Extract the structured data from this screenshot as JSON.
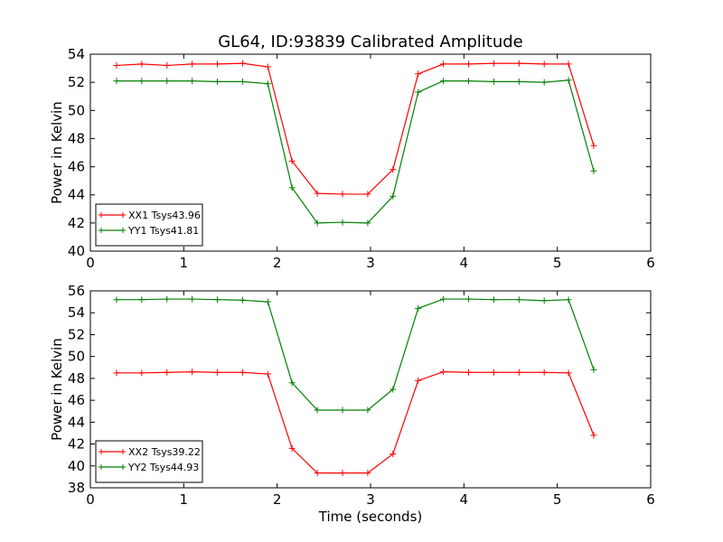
{
  "figure": {
    "title": "GL64, ID:93839 Calibrated Amplitude"
  },
  "chart_data": [
    {
      "type": "line",
      "title": "GL64, ID:93839 Calibrated Amplitude",
      "xlabel": "",
      "ylabel": "Power in Kelvin",
      "xlim": [
        0,
        6
      ],
      "ylim": [
        40,
        54
      ],
      "xticks": [
        0,
        1,
        2,
        3,
        4,
        5,
        6
      ],
      "yticks": [
        40,
        42,
        44,
        46,
        48,
        50,
        52,
        54
      ],
      "grid": false,
      "legend_position": "lower-left",
      "x": [
        0.28,
        0.55,
        0.82,
        1.09,
        1.36,
        1.63,
        1.9,
        2.16,
        2.43,
        2.7,
        2.97,
        3.24,
        3.51,
        3.78,
        4.05,
        4.32,
        4.59,
        4.86,
        5.12,
        5.39
      ],
      "series": [
        {
          "name": "XX1 Tsys43.96",
          "color": "#ff0000",
          "values": [
            53.2,
            53.3,
            53.2,
            53.3,
            53.3,
            53.35,
            53.1,
            46.4,
            44.1,
            44.05,
            44.05,
            45.8,
            52.6,
            53.3,
            53.3,
            53.35,
            53.35,
            53.3,
            53.3,
            47.5
          ]
        },
        {
          "name": "YY1 Tsys41.81",
          "color": "#008000",
          "values": [
            52.1,
            52.1,
            52.1,
            52.1,
            52.05,
            52.05,
            51.9,
            44.5,
            42.0,
            42.05,
            42.0,
            43.9,
            51.3,
            52.1,
            52.1,
            52.05,
            52.05,
            52.0,
            52.15,
            45.7
          ]
        }
      ]
    },
    {
      "type": "line",
      "title": "",
      "xlabel": "Time (seconds)",
      "ylabel": "Power in Kelvin",
      "xlim": [
        0,
        6
      ],
      "ylim": [
        38,
        56
      ],
      "xticks": [
        0,
        1,
        2,
        3,
        4,
        5,
        6
      ],
      "yticks": [
        38,
        40,
        42,
        44,
        46,
        48,
        50,
        52,
        54,
        56
      ],
      "grid": false,
      "legend_position": "lower-left",
      "x": [
        0.28,
        0.55,
        0.82,
        1.09,
        1.36,
        1.63,
        1.9,
        2.16,
        2.43,
        2.7,
        2.97,
        3.24,
        3.51,
        3.78,
        4.05,
        4.32,
        4.59,
        4.86,
        5.12,
        5.39
      ],
      "series": [
        {
          "name": "XX2 Tsys39.22",
          "color": "#ff0000",
          "values": [
            48.5,
            48.5,
            48.55,
            48.6,
            48.55,
            48.55,
            48.4,
            41.6,
            39.35,
            39.35,
            39.35,
            41.1,
            47.8,
            48.6,
            48.55,
            48.55,
            48.55,
            48.55,
            48.5,
            42.8
          ]
        },
        {
          "name": "YY2 Tsys44.93",
          "color": "#008000",
          "values": [
            55.2,
            55.2,
            55.25,
            55.25,
            55.2,
            55.15,
            55.0,
            47.6,
            45.1,
            45.1,
            45.1,
            47.0,
            54.4,
            55.25,
            55.25,
            55.2,
            55.2,
            55.1,
            55.2,
            48.8
          ]
        }
      ]
    }
  ]
}
